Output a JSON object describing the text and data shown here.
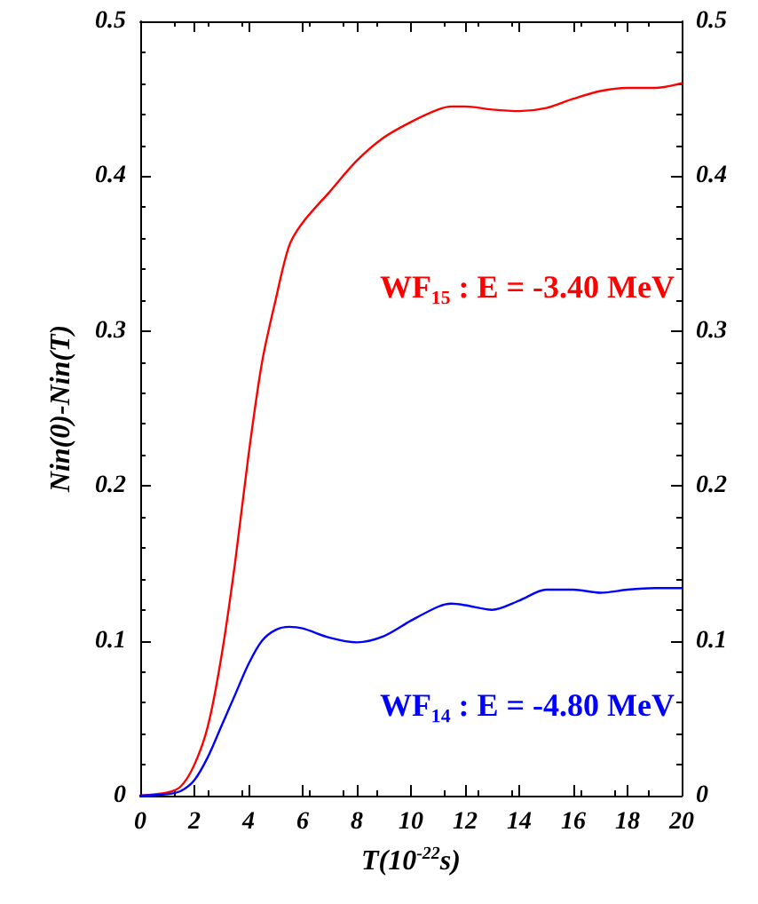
{
  "chart_data": {
    "type": "line",
    "xlabel": "T(10$^{-22}$s)",
    "ylabel": "Nin(0)-Nin(T)",
    "xlim": [
      0,
      20
    ],
    "xticks": [
      0,
      2,
      4,
      6,
      8,
      10,
      12,
      14,
      16,
      18,
      20
    ],
    "ylim": [
      0,
      0.5
    ],
    "yticks": [
      0,
      0.1,
      0.2,
      0.3,
      0.4,
      0.5
    ],
    "y2lim": [
      0,
      0.5
    ],
    "y2ticks": [
      0,
      0.1,
      0.2,
      0.3,
      0.4,
      0.5
    ],
    "grid": false,
    "legend": false,
    "marker": "none",
    "line_style": "solid",
    "x": [
      0,
      1,
      1.5,
      2,
      2.5,
      3,
      3.5,
      4,
      4.5,
      5,
      5.5,
      6,
      7,
      8,
      9,
      10,
      11,
      11.5,
      12,
      13,
      14,
      15,
      16,
      17,
      18,
      19,
      20
    ],
    "series": [
      {
        "name": "WF₁₅ : E = -3.40 MeV",
        "color": "#ff0000",
        "values": [
          0,
          0.002,
          0.006,
          0.02,
          0.045,
          0.09,
          0.15,
          0.22,
          0.28,
          0.32,
          0.355,
          0.37,
          0.39,
          0.41,
          0.425,
          0.435,
          0.443,
          0.445,
          0.445,
          0.443,
          0.442,
          0.444,
          0.45,
          0.455,
          0.457,
          0.457,
          0.46
        ]
      },
      {
        "name": "WF₁₄ : E = -4.80 MeV",
        "color": "#0000ff",
        "values": [
          0,
          0.001,
          0.003,
          0.01,
          0.025,
          0.045,
          0.065,
          0.085,
          0.1,
          0.107,
          0.109,
          0.108,
          0.102,
          0.099,
          0.103,
          0.113,
          0.122,
          0.124,
          0.123,
          0.12,
          0.126,
          0.133,
          0.133,
          0.131,
          0.133,
          0.134,
          0.134
        ]
      }
    ]
  }
}
